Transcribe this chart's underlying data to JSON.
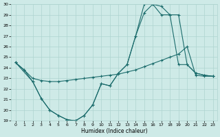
{
  "xlabel": "Humidex (Indice chaleur)",
  "bg_color": "#ceeae7",
  "grid_color": "#aed4d0",
  "line_color": "#1a6b6b",
  "xlim": [
    -0.5,
    23.5
  ],
  "ylim": [
    19,
    30
  ],
  "xticks": [
    0,
    1,
    2,
    3,
    4,
    5,
    6,
    7,
    8,
    9,
    10,
    11,
    12,
    13,
    14,
    15,
    16,
    17,
    18,
    19,
    20,
    21,
    22,
    23
  ],
  "yticks": [
    19,
    20,
    21,
    22,
    23,
    24,
    25,
    26,
    27,
    28,
    29,
    30
  ],
  "line1_x": [
    0,
    1,
    2,
    3,
    4,
    5,
    6,
    7,
    8,
    9,
    10,
    11,
    12,
    13,
    14,
    15,
    16,
    17,
    18,
    19,
    20,
    21,
    22,
    23
  ],
  "line1_y": [
    24.5,
    23.8,
    23.0,
    22.8,
    22.7,
    22.7,
    22.8,
    22.9,
    23.0,
    23.1,
    23.2,
    23.3,
    23.4,
    23.6,
    23.8,
    24.1,
    24.4,
    24.7,
    25.0,
    25.3,
    26.0,
    23.3,
    23.2,
    23.2
  ],
  "line2_x": [
    0,
    2,
    3,
    4,
    5,
    6,
    7,
    8,
    9,
    10,
    11,
    12,
    13,
    14,
    15,
    16,
    17,
    18,
    19,
    20,
    21,
    22,
    23
  ],
  "line2_y": [
    24.5,
    22.7,
    21.1,
    20.0,
    19.5,
    19.1,
    19.0,
    19.5,
    20.5,
    22.5,
    22.3,
    23.5,
    24.3,
    27.0,
    29.2,
    30.0,
    29.8,
    29.0,
    24.3,
    24.3,
    23.5,
    23.3,
    23.2
  ],
  "line3_x": [
    0,
    1,
    2,
    3,
    4,
    5,
    6,
    7,
    8,
    9,
    10,
    11,
    12,
    13,
    14,
    15,
    16,
    17,
    18,
    19,
    20,
    21,
    22,
    23
  ],
  "line3_y": [
    24.5,
    23.8,
    22.7,
    21.1,
    20.0,
    19.5,
    19.1,
    19.0,
    19.5,
    20.5,
    22.5,
    22.3,
    23.5,
    24.3,
    27.0,
    30.0,
    30.0,
    29.0,
    29.0,
    29.0,
    24.3,
    23.5,
    23.3,
    23.2
  ]
}
